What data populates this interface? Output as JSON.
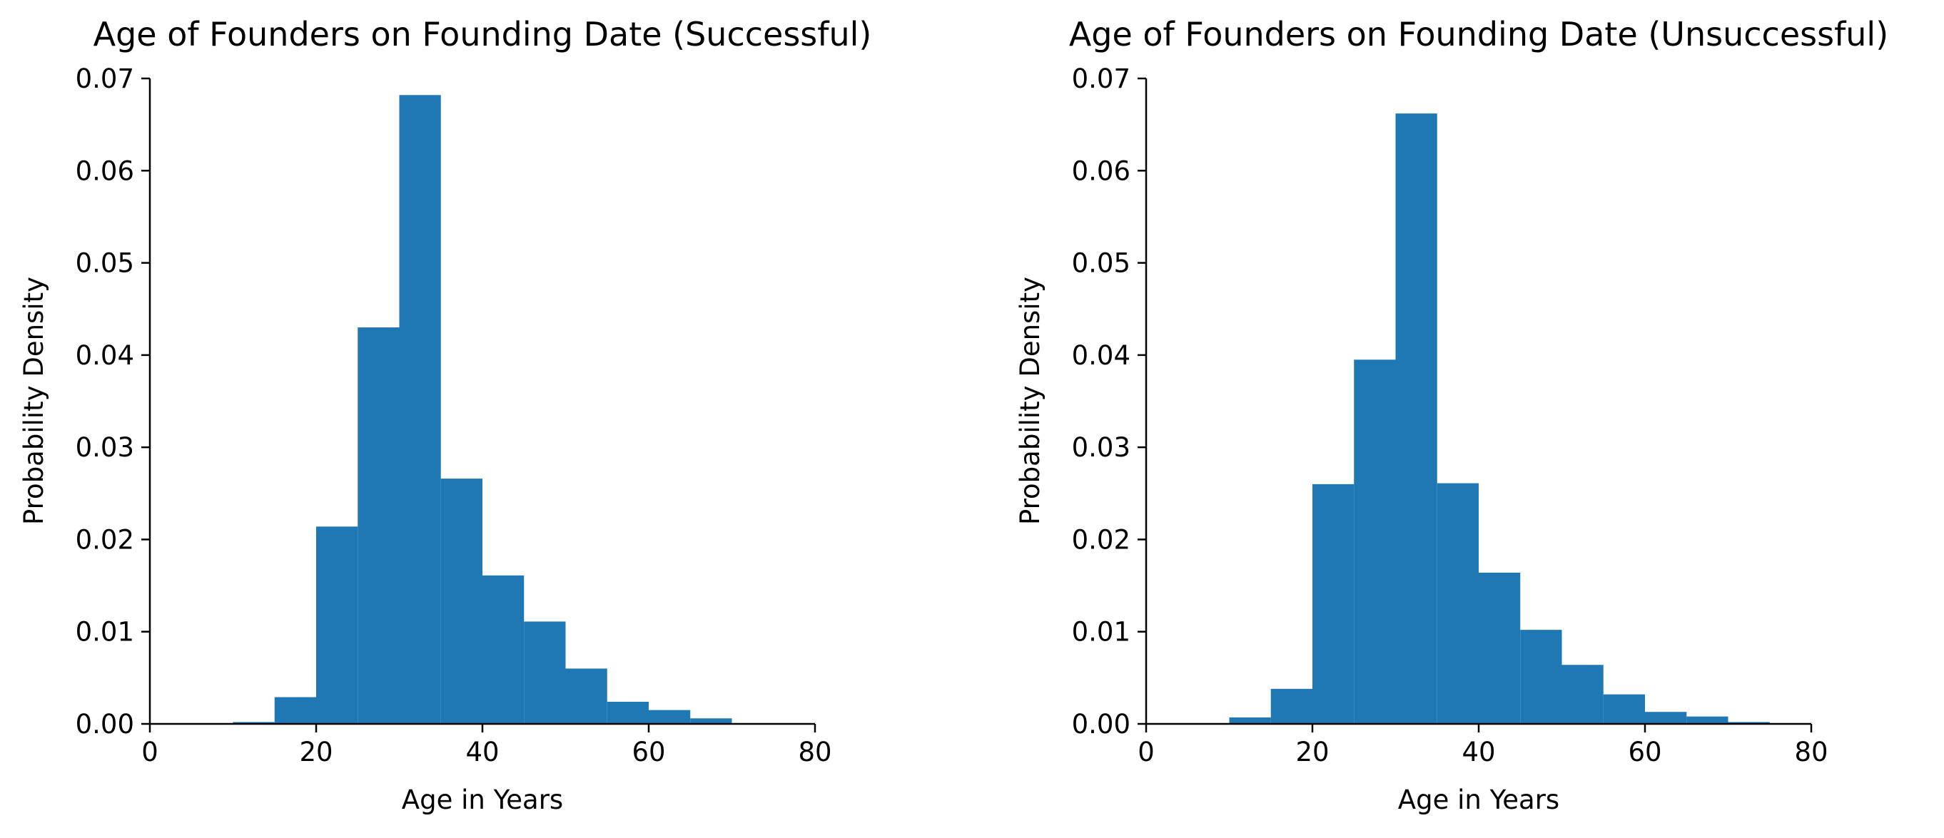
{
  "figure": {
    "background": "#ffffff",
    "bar_color": "#1f77b4"
  },
  "chart_data": [
    {
      "type": "bar",
      "title": "Age of Founders on Founding Date (Successful)",
      "xlabel": "Age in Years",
      "ylabel": "Probability Density",
      "xlim": [
        0,
        80
      ],
      "ylim": [
        0,
        0.07
      ],
      "xticks": [
        0,
        20,
        40,
        60,
        80
      ],
      "xtick_labels": [
        "0",
        "20",
        "40",
        "60",
        "80"
      ],
      "yticks": [
        0,
        0.01,
        0.02,
        0.03,
        0.04,
        0.05,
        0.06,
        0.07
      ],
      "ytick_labels": [
        "0.00",
        "0.01",
        "0.02",
        "0.03",
        "0.04",
        "0.05",
        "0.06",
        "0.07"
      ],
      "grid": false,
      "bin_edges": [
        10,
        15,
        20,
        25,
        30,
        35,
        40,
        45,
        50,
        55,
        60,
        65,
        70
      ],
      "values": [
        0.0002,
        0.0029,
        0.0214,
        0.043,
        0.0682,
        0.0266,
        0.0161,
        0.0111,
        0.006,
        0.0024,
        0.0015,
        0.0006
      ]
    },
    {
      "type": "bar",
      "title": "Age of Founders on Founding Date (Unsuccessful)",
      "xlabel": "Age in Years",
      "ylabel": "Probability Density",
      "xlim": [
        0,
        80
      ],
      "ylim": [
        0,
        0.07
      ],
      "xticks": [
        0,
        20,
        40,
        60,
        80
      ],
      "xtick_labels": [
        "0",
        "20",
        "40",
        "60",
        "80"
      ],
      "yticks": [
        0,
        0.01,
        0.02,
        0.03,
        0.04,
        0.05,
        0.06,
        0.07
      ],
      "ytick_labels": [
        "0.00",
        "0.01",
        "0.02",
        "0.03",
        "0.04",
        "0.05",
        "0.06",
        "0.07"
      ],
      "grid": false,
      "bin_edges": [
        10,
        15,
        20,
        25,
        30,
        35,
        40,
        45,
        50,
        55,
        60,
        65,
        70,
        75
      ],
      "values": [
        0.0007,
        0.0038,
        0.026,
        0.0395,
        0.0662,
        0.0261,
        0.0164,
        0.0102,
        0.0064,
        0.0032,
        0.0013,
        0.0008,
        0.0002
      ]
    }
  ]
}
